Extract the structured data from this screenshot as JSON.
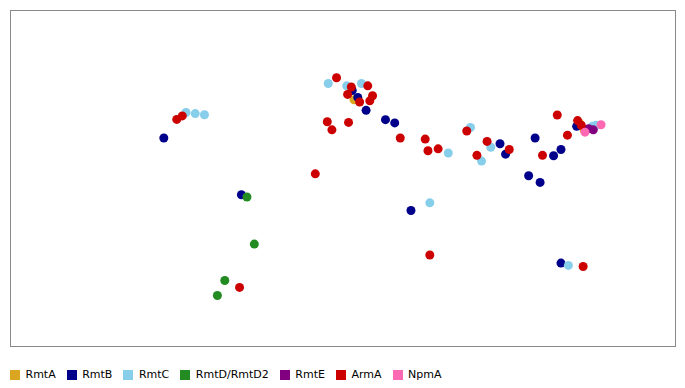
{
  "chart_data": {
    "type": "scatter",
    "xlim": [
      -180,
      180
    ],
    "ylim": [
      -60,
      85
    ],
    "tick_labels": false,
    "grid": false,
    "legend": "bottom",
    "series": [
      {
        "name": "RmtA",
        "color": "#DAA520",
        "x": [
          6.0,
          128.0,
          130.5
        ],
        "y": [
          46.5,
          36.5,
          33.5
        ]
      },
      {
        "name": "RmtB",
        "color": "#00008B",
        "x": [
          5.0,
          8.0,
          12.5,
          23.0,
          28.0,
          36.8,
          85.0,
          88.0,
          100.5,
          106.7,
          104.0,
          114.0,
          118.0,
          126.5,
          118.0,
          -55.0,
          -97.0
        ],
        "y": [
          50.5,
          47.5,
          41.9,
          37.9,
          36.5,
          -1.3,
          27.5,
          23.0,
          13.7,
          10.8,
          30.0,
          22.3,
          25.0,
          35.0,
          -24.0,
          5.5,
          30.0
        ]
      },
      {
        "name": "RmtC",
        "color": "#87CEEB",
        "x": [
          10.0,
          2.0,
          -8.0,
          47.0,
          57.0,
          69.0,
          75.0,
          80.0,
          135.0,
          137.0,
          122.0,
          -75.0,
          -80.0,
          -85.0
        ],
        "y": [
          53.5,
          52.5,
          53.5,
          2.0,
          23.5,
          34.5,
          20.0,
          26.0,
          35.0,
          35.5,
          -25.0,
          40.0,
          40.5,
          41.0
        ]
      },
      {
        "name": "RmtD/RmtD2",
        "color": "#228B22",
        "x": [
          -52.0,
          -48.0,
          -64.0,
          -68.0
        ],
        "y": [
          4.5,
          -15.8,
          -31.5,
          -38.0
        ]
      },
      {
        "name": "RmtE",
        "color": "#800080",
        "x": [
          133.0,
          135.5
        ],
        "y": [
          34.0,
          33.5
        ]
      },
      {
        "name": "ArmA",
        "color": "#CC0000",
        "x": [
          -3.5,
          2.5,
          4.5,
          13.4,
          16.0,
          9.0,
          14.5,
          -8.5,
          3.0,
          -6.0,
          31.0,
          -15.0,
          46.0,
          44.5,
          51.5,
          67.0,
          72.5,
          78.0,
          90.0,
          108.0,
          116.0,
          121.5,
          127.0,
          129.0,
          130.0,
          47.0,
          -56.0,
          -90.0,
          -87.0
        ],
        "y": [
          56.0,
          48.8,
          52.0,
          52.5,
          48.2,
          45.5,
          46.0,
          37.0,
          36.7,
          33.5,
          30.0,
          14.5,
          24.5,
          29.5,
          25.3,
          33.0,
          22.5,
          28.5,
          25.0,
          22.5,
          39.9,
          31.2,
          37.5,
          35.5,
          -25.5,
          -20.5,
          -34.5,
          38.0,
          39.5
        ]
      },
      {
        "name": "NpmA",
        "color": "#FF69B4",
        "x": [
          131.0,
          139.7
        ],
        "y": [
          32.5,
          35.7
        ]
      }
    ]
  }
}
